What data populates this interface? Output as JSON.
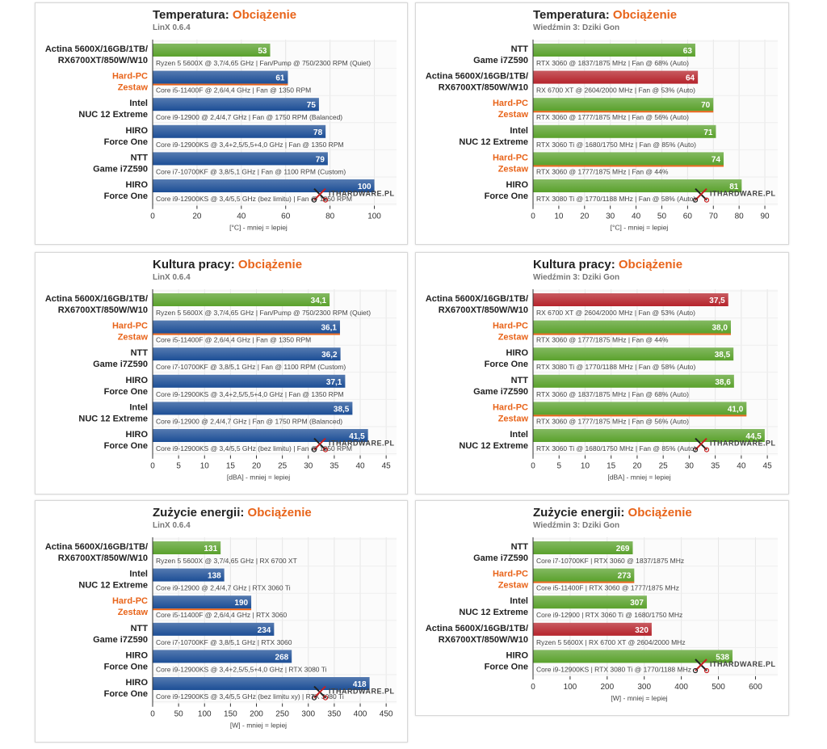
{
  "colors": {
    "blue": "#1c4e96",
    "green": "#5aa12c",
    "red": "#b5232b",
    "highlight": "#e8641a",
    "grid": "#e6e6e6"
  },
  "watermark": "ITHARDWARE.PL",
  "chart_data": [
    {
      "type": "bar",
      "title": "Temperatura:",
      "title_highlight": "Obciążenie",
      "subtitle": "LinX 0.6.4",
      "xlabel": "[°C] - mniej = lepiej",
      "xlim": [
        0,
        110
      ],
      "ticks": [
        0,
        20,
        40,
        60,
        80,
        100
      ],
      "bars": [
        {
          "label1": "Actina 5600X/16GB/1TB/",
          "label2": "RX6700XT/850W/W10",
          "value": 53,
          "display": "53",
          "spec": "Ryzen 5 5600X @ 3,7/4,65 GHz | Fan/Pump @ 750/2300 RPM (Quiet)",
          "color": "green",
          "highlight": false
        },
        {
          "label1": "Hard-PC",
          "label2": "Zestaw",
          "value": 61,
          "display": "61",
          "spec": "Core i5-11400F @ 2,6/4,4 GHz | Fan @ 1350 RPM",
          "color": "blue",
          "highlight": true
        },
        {
          "label1": "Intel",
          "label2": "NUC 12 Extreme",
          "value": 75,
          "display": "75",
          "spec": "Core i9-12900 @ 2,4/4,7 GHz | Fan @ 1750 RPM (Balanced)",
          "color": "blue",
          "highlight": false
        },
        {
          "label1": "HIRO",
          "label2": "Force One",
          "value": 78,
          "display": "78",
          "spec": "Core i9-12900KS @ 3,4+2,5/5,5+4,0 GHz | Fan @ 1350 RPM",
          "color": "blue",
          "highlight": false
        },
        {
          "label1": "NTT",
          "label2": "Game i7Z590",
          "value": 79,
          "display": "79",
          "spec": "Core i7-10700KF @ 3,8/5,1 GHz | Fan @ 1100 RPM (Custom)",
          "color": "blue",
          "highlight": false
        },
        {
          "label1": "HIRO",
          "label2": "Force One",
          "value": 100,
          "display": "100",
          "spec": "Core i9-12900KS @ 3,4/5,5 GHz (bez limitu) | Fan @ 1850 RPM",
          "color": "blue",
          "highlight": false
        }
      ]
    },
    {
      "type": "bar",
      "title": "Temperatura:",
      "title_highlight": "Obciążenie",
      "subtitle": "Wiedźmin 3: Dziki Gon",
      "xlabel": "[°C] - mniej = lepiej",
      "xlim": [
        0,
        95
      ],
      "ticks": [
        0,
        10,
        20,
        30,
        40,
        50,
        60,
        70,
        80,
        90
      ],
      "bars": [
        {
          "label1": "NTT",
          "label2": "Game i7Z590",
          "value": 63,
          "display": "63",
          "spec": "RTX 3060 @ 1837/1875 MHz | Fan @ 68% (Auto)",
          "color": "green",
          "highlight": false
        },
        {
          "label1": "Actina 5600X/16GB/1TB/",
          "label2": "RX6700XT/850W/W10",
          "value": 64,
          "display": "64",
          "spec": "RX 6700 XT @ 2604/2000 MHz | Fan @ 53% (Auto)",
          "color": "red",
          "highlight": false
        },
        {
          "label1": "Hard-PC",
          "label2": "Zestaw",
          "value": 70,
          "display": "70",
          "spec": "RTX 3060 @ 1777/1875 MHz | Fan @ 56% (Auto)",
          "color": "green",
          "highlight": true
        },
        {
          "label1": "Intel",
          "label2": "NUC 12 Extreme",
          "value": 71,
          "display": "71",
          "spec": "RTX 3060 Ti @ 1680/1750 MHz | Fan @ 85% (Auto)",
          "color": "green",
          "highlight": false
        },
        {
          "label1": "Hard-PC",
          "label2": "Zestaw",
          "value": 74,
          "display": "74",
          "spec": "RTX 3060 @ 1777/1875 MHz | Fan @ 44%",
          "color": "green",
          "highlight": true
        },
        {
          "label1": "HIRO",
          "label2": "Force One",
          "value": 81,
          "display": "81",
          "spec": "RTX 3080 Ti @ 1770/1188 MHz | Fan @ 58% (Auto)",
          "color": "green",
          "highlight": false
        }
      ]
    },
    {
      "type": "bar",
      "title": "Kultura pracy:",
      "title_highlight": "Obciążenie",
      "subtitle": "LinX 0.6.4",
      "xlabel": "[dBA] - mniej = lepiej",
      "xlim": [
        0,
        47
      ],
      "ticks": [
        0,
        5,
        10,
        15,
        20,
        25,
        30,
        35,
        40,
        45
      ],
      "bars": [
        {
          "label1": "Actina 5600X/16GB/1TB/",
          "label2": "RX6700XT/850W/W10",
          "value": 34.1,
          "display": "34,1",
          "spec": "Ryzen 5 5600X @ 3,7/4,65 GHz | Fan/Pump @ 750/2300 RPM (Quiet)",
          "color": "green",
          "highlight": false
        },
        {
          "label1": "Hard-PC",
          "label2": "Zestaw",
          "value": 36.1,
          "display": "36,1",
          "spec": "Core i5-11400F @ 2,6/4,4 GHz | Fan @ 1350 RPM",
          "color": "blue",
          "highlight": true
        },
        {
          "label1": "NTT",
          "label2": "Game i7Z590",
          "value": 36.2,
          "display": "36,2",
          "spec": "Core i7-10700KF @ 3,8/5,1 GHz | Fan @ 1100 RPM (Custom)",
          "color": "blue",
          "highlight": false
        },
        {
          "label1": "HIRO",
          "label2": "Force One",
          "value": 37.1,
          "display": "37,1",
          "spec": "Core i9-12900KS @ 3,4+2,5/5,5+4,0 GHz | Fan @ 1350 RPM",
          "color": "blue",
          "highlight": false
        },
        {
          "label1": "Intel",
          "label2": "NUC 12 Extreme",
          "value": 38.5,
          "display": "38,5",
          "spec": "Core i9-12900 @ 2,4/4,7 GHz | Fan @ 1750 RPM (Balanced)",
          "color": "blue",
          "highlight": false
        },
        {
          "label1": "HIRO",
          "label2": "Force One",
          "value": 41.5,
          "display": "41,5",
          "spec": "Core i9-12900KS @ 3,4/5,5 GHz (bez limitu) | Fan @ 1850 RPM",
          "color": "blue",
          "highlight": false
        }
      ]
    },
    {
      "type": "bar",
      "title": "Kultura pracy:",
      "title_highlight": "Obciążenie",
      "subtitle": "Wiedźmin 3: Dziki Gon",
      "xlabel": "[dBA] - mniej = lepiej",
      "xlim": [
        0,
        47
      ],
      "ticks": [
        0,
        5,
        10,
        15,
        20,
        25,
        30,
        35,
        40,
        45
      ],
      "bars": [
        {
          "label1": "Actina 5600X/16GB/1TB/",
          "label2": "RX6700XT/850W/W10",
          "value": 37.5,
          "display": "37,5",
          "spec": "RX 6700 XT @ 2604/2000 MHz | Fan @ 53% (Auto)",
          "color": "red",
          "highlight": false
        },
        {
          "label1": "Hard-PC",
          "label2": "Zestaw",
          "value": 38.0,
          "display": "38,0",
          "spec": "RTX 3060 @ 1777/1875 MHz | Fan @ 44%",
          "color": "green",
          "highlight": true
        },
        {
          "label1": "HIRO",
          "label2": "Force One",
          "value": 38.5,
          "display": "38,5",
          "spec": "RTX 3080 Ti @ 1770/1188 MHz | Fan @ 58% (Auto)",
          "color": "green",
          "highlight": false
        },
        {
          "label1": "NTT",
          "label2": "Game i7Z590",
          "value": 38.6,
          "display": "38,6",
          "spec": "RTX 3060 @ 1837/1875 MHz | Fan @ 68% (Auto)",
          "color": "green",
          "highlight": false
        },
        {
          "label1": "Hard-PC",
          "label2": "Zestaw",
          "value": 41.0,
          "display": "41,0",
          "spec": "RTX 3060 @ 1777/1875 MHz | Fan @ 56% (Auto)",
          "color": "green",
          "highlight": true
        },
        {
          "label1": "Intel",
          "label2": "NUC 12 Extreme",
          "value": 44.5,
          "display": "44,5",
          "spec": "RTX 3060 Ti @ 1680/1750 MHz | Fan @ 85% (Auto)",
          "color": "green",
          "highlight": false
        }
      ]
    },
    {
      "type": "bar",
      "title": "Zużycie energii:",
      "title_highlight": "Obciążenie",
      "subtitle": "LinX 0.6.4",
      "xlabel": "[W] - mniej = lepiej",
      "xlim": [
        0,
        470
      ],
      "ticks": [
        0,
        50,
        100,
        150,
        200,
        250,
        300,
        350,
        400,
        450
      ],
      "bars": [
        {
          "label1": "Actina 5600X/16GB/1TB/",
          "label2": "RX6700XT/850W/W10",
          "value": 131,
          "display": "131",
          "spec": "Ryzen 5 5600X @ 3,7/4,65 GHz | RX 6700 XT",
          "color": "green",
          "highlight": false
        },
        {
          "label1": "Intel",
          "label2": "NUC 12 Extreme",
          "value": 138,
          "display": "138",
          "spec": "Core i9-12900 @ 2,4/4,7 GHz | RTX 3060 Ti",
          "color": "blue",
          "highlight": false
        },
        {
          "label1": "Hard-PC",
          "label2": "Zestaw",
          "value": 190,
          "display": "190",
          "spec": "Core i5-11400F @ 2,6/4,4 GHz | RTX 3060",
          "color": "blue",
          "highlight": true
        },
        {
          "label1": "NTT",
          "label2": "Game i7Z590",
          "value": 234,
          "display": "234",
          "spec": "Core i7-10700KF @ 3,8/5,1 GHz | RTX 3060",
          "color": "blue",
          "highlight": false
        },
        {
          "label1": "HIRO",
          "label2": "Force One",
          "value": 268,
          "display": "268",
          "spec": "Core i9-12900KS @ 3,4+2,5/5,5+4,0 GHz | RTX 3080 Ti",
          "color": "blue",
          "highlight": false
        },
        {
          "label1": "HIRO",
          "label2": "Force One",
          "value": 418,
          "display": "418",
          "spec": "Core i9-12900KS @ 3,4/5,5 GHz (bez limitu xy) | RTX 3080 Ti",
          "color": "blue",
          "highlight": false
        }
      ]
    },
    {
      "type": "bar",
      "title": "Zużycie energii:",
      "title_highlight": "Obciążenie",
      "subtitle": "Wiedźmin 3: Dziki Gon",
      "xlabel": "[W] - mniej = lepiej",
      "xlim": [
        0,
        660
      ],
      "ticks": [
        0,
        100,
        200,
        300,
        400,
        500,
        600
      ],
      "bars": [
        {
          "label1": "NTT",
          "label2": "Game i7Z590",
          "value": 269,
          "display": "269",
          "spec": "Core i7-10700KF | RTX 3060 @ 1837/1875 MHz",
          "color": "green",
          "highlight": false
        },
        {
          "label1": "Hard-PC",
          "label2": "Zestaw",
          "value": 273,
          "display": "273",
          "spec": "Core i5-11400F | RTX 3060 @ 1777/1875 MHz",
          "color": "green",
          "highlight": true
        },
        {
          "label1": "Intel",
          "label2": "NUC 12 Extreme",
          "value": 307,
          "display": "307",
          "spec": "Core i9-12900 | RTX 3060 Ti @ 1680/1750 MHz",
          "color": "green",
          "highlight": false
        },
        {
          "label1": "Actina 5600X/16GB/1TB/",
          "label2": "RX6700XT/850W/W10",
          "value": 320,
          "display": "320",
          "spec": "Ryzen 5 5600X | RX 6700 XT @ 2604/2000 MHz",
          "color": "red",
          "highlight": false
        },
        {
          "label1": "HIRO",
          "label2": "Force One",
          "value": 538,
          "display": "538",
          "spec": "Core i9-12900KS | RTX 3080 Ti @ 1770/1188 MHz",
          "color": "green",
          "highlight": false
        }
      ]
    }
  ]
}
